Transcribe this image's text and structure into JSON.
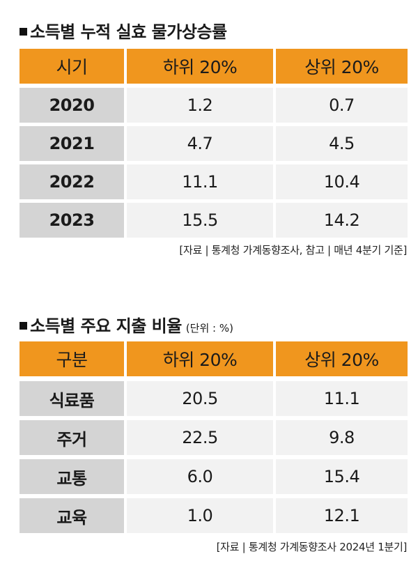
{
  "section1": {
    "title": "소득별 누적 실효 물가상승률",
    "headers": [
      "시기",
      "하위 20%",
      "상위 20%"
    ],
    "rows": [
      [
        "2020",
        "1.2",
        "0.7"
      ],
      [
        "2021",
        "4.7",
        "4.5"
      ],
      [
        "2022",
        "11.1",
        "10.4"
      ],
      [
        "2023",
        "15.5",
        "14.2"
      ]
    ],
    "source": "[자료 | 통계청 가계동향조사, 참고 | 매년 4분기 기준]"
  },
  "section2": {
    "title": "소득별 주요 지출 비율",
    "unit": "(단위 : %)",
    "headers": [
      "구분",
      "하위 20%",
      "상위 20%"
    ],
    "rows": [
      [
        "식료품",
        "20.5",
        "11.1"
      ],
      [
        "주거",
        "22.5",
        "9.8"
      ],
      [
        "교통",
        "6.0",
        "15.4"
      ],
      [
        "교육",
        "1.0",
        "12.1"
      ]
    ],
    "source": "[자료 | 통계청 가계동향조사 2024년 1분기]"
  },
  "colors": {
    "header": "#f0961e",
    "label_cell": "#d4d4d4",
    "value_cell": "#f2f2f2"
  }
}
